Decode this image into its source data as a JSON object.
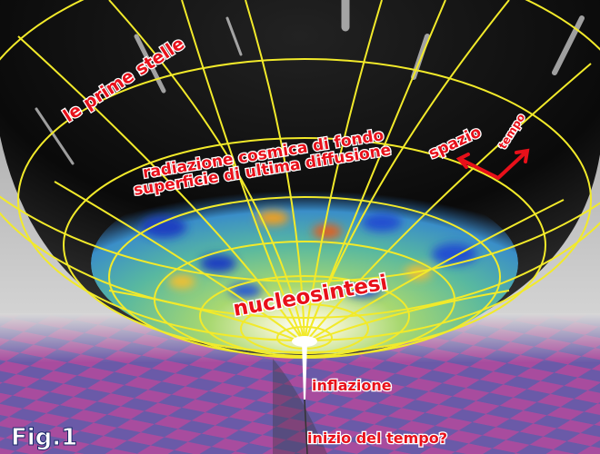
{
  "labels": {
    "first_stars": "le prime stelle",
    "cmb": "radiazione cosmica di fondo",
    "last_scattering": "superficie di ultima diffusione",
    "space": "spazio",
    "time": "tempo",
    "nucleosynthesis": "nucleosintesi",
    "inflation": "inflazione",
    "time_start": "inizio del tempo?",
    "figure": "Fig.1"
  }
}
